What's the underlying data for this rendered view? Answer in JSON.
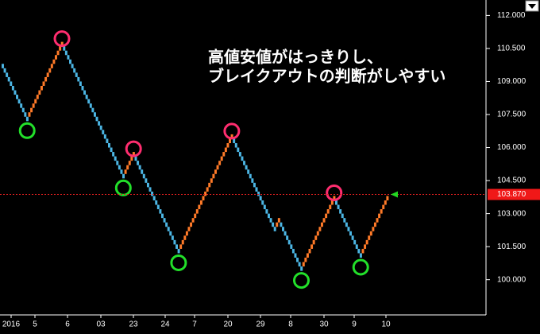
{
  "chart_data": {
    "type": "renko",
    "annotation_lines": [
      "高値安値がはっきりし、",
      "ブレイクアウトの判断がしやすい"
    ],
    "brick_size": 0.2,
    "up_color": "#ff7a28",
    "down_color": "#4cb6e4",
    "values": [
      109.6,
      109.4,
      109.2,
      109.0,
      108.8,
      108.6,
      108.4,
      108.2,
      108.0,
      107.8,
      107.6,
      107.4,
      107.2,
      107.6,
      107.8,
      108.0,
      108.2,
      108.4,
      108.6,
      108.8,
      109.0,
      109.2,
      109.4,
      109.6,
      109.8,
      110.0,
      110.2,
      110.4,
      110.6,
      110.8,
      110.4,
      110.2,
      110.0,
      109.8,
      109.6,
      109.4,
      109.2,
      109.0,
      108.8,
      108.6,
      108.4,
      108.2,
      108.0,
      107.8,
      107.6,
      107.4,
      107.2,
      107.0,
      106.8,
      106.6,
      106.4,
      106.2,
      106.0,
      105.8,
      105.6,
      105.4,
      105.2,
      105.0,
      104.8,
      104.6,
      105.0,
      105.2,
      105.4,
      105.6,
      105.8,
      105.4,
      105.2,
      105.0,
      104.8,
      104.6,
      104.4,
      104.2,
      104.0,
      103.8,
      103.6,
      103.4,
      103.2,
      103.0,
      102.8,
      102.6,
      102.4,
      102.2,
      102.0,
      101.8,
      101.6,
      101.4,
      101.2,
      101.6,
      101.8,
      102.0,
      102.2,
      102.4,
      102.6,
      102.8,
      103.0,
      103.2,
      103.4,
      103.6,
      103.8,
      104.0,
      104.2,
      104.4,
      104.6,
      104.8,
      105.0,
      105.2,
      105.4,
      105.6,
      105.8,
      106.0,
      106.2,
      106.4,
      106.6,
      106.2,
      106.0,
      105.8,
      105.6,
      105.4,
      105.2,
      105.0,
      104.8,
      104.6,
      104.4,
      104.2,
      104.0,
      103.8,
      103.6,
      103.4,
      103.2,
      103.0,
      102.8,
      102.6,
      102.4,
      102.2,
      102.6,
      102.8,
      102.4,
      102.2,
      102.0,
      101.8,
      101.6,
      101.4,
      101.2,
      101.0,
      100.8,
      100.6,
      100.4,
      100.8,
      101.0,
      101.2,
      101.4,
      101.6,
      101.8,
      102.0,
      102.2,
      102.4,
      102.6,
      102.8,
      103.0,
      103.2,
      103.4,
      103.6,
      103.8,
      103.4,
      103.2,
      103.0,
      102.8,
      102.6,
      102.4,
      102.2,
      102.0,
      101.8,
      101.6,
      101.4,
      101.2,
      101.0,
      101.4,
      101.6,
      101.8,
      102.0,
      102.2,
      102.4,
      102.6,
      102.8,
      103.0,
      103.2,
      103.4,
      103.6,
      103.8
    ],
    "x_labels": [
      "2016",
      "5",
      "6",
      "03",
      "23",
      "24",
      "7",
      "20",
      "29",
      "8",
      "30",
      "9",
      "10"
    ],
    "ylim": [
      98.4,
      112.7
    ],
    "yticks": [
      {
        "value": 100,
        "label": "100.000"
      },
      {
        "value": 101.5,
        "label": "101.500"
      },
      {
        "value": 103,
        "label": "103.000"
      },
      {
        "value": 104.5,
        "label": "104.500"
      },
      {
        "value": 106,
        "label": "106.000"
      },
      {
        "value": 107.5,
        "label": "107.500"
      },
      {
        "value": 109,
        "label": "109.000"
      },
      {
        "value": 110.5,
        "label": "110.500"
      },
      {
        "value": 112,
        "label": "112.000"
      }
    ],
    "current_price": {
      "value": 103.87,
      "label": "103.870"
    }
  }
}
